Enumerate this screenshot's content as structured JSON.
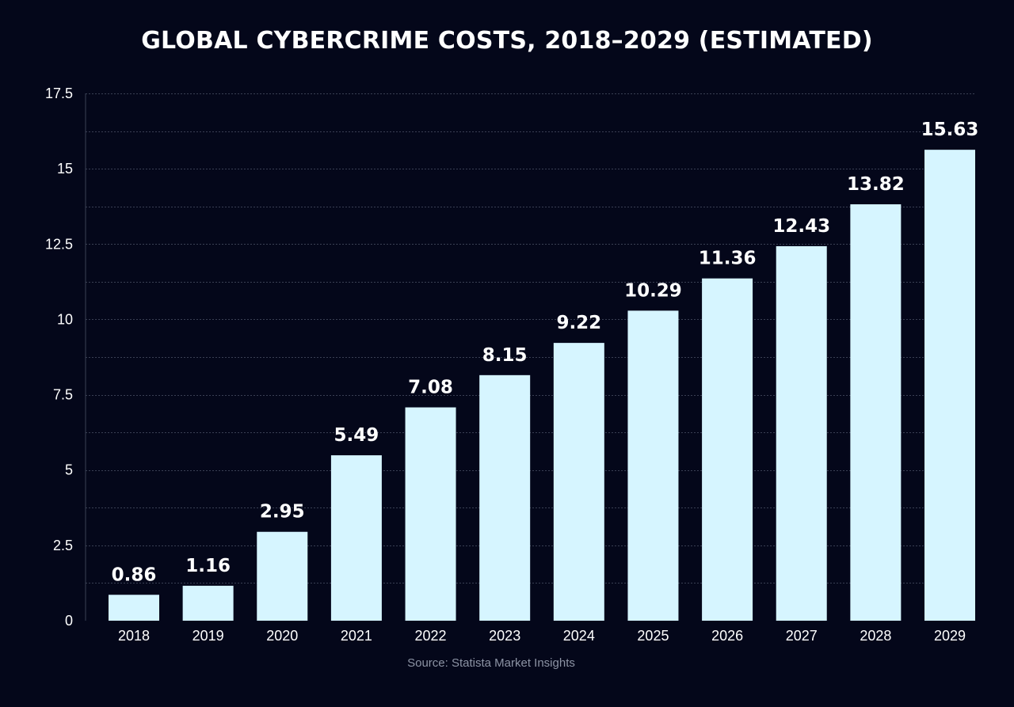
{
  "chart_data": {
    "type": "bar",
    "title": "GLOBAL CYBERCRIME COSTS, 2018–2029 (ESTIMATED)",
    "xlabel": "",
    "ylabel": "",
    "categories": [
      "2018",
      "2019",
      "2020",
      "2021",
      "2022",
      "2023",
      "2024",
      "2025",
      "2026",
      "2027",
      "2028",
      "2029"
    ],
    "values": [
      0.86,
      1.16,
      2.95,
      5.49,
      7.08,
      8.15,
      9.22,
      10.29,
      11.36,
      12.43,
      13.82,
      15.63
    ],
    "value_labels": [
      "0.86",
      "1.16",
      "2.95",
      "5.49",
      "7.08",
      "8.15",
      "9.22",
      "10.29",
      "11.36",
      "12.43",
      "13.82",
      "15.63"
    ],
    "ylim": [
      0,
      17.5
    ],
    "yticks": [
      0,
      2.5,
      5,
      7.5,
      10,
      12.5,
      15,
      17.5
    ],
    "ytick_labels": [
      "0",
      "2.5",
      "5",
      "7.5",
      "10",
      "12.5",
      "15",
      "17.5"
    ],
    "grid": true,
    "legend": "none",
    "source": "Source: Statista Market Insights"
  },
  "colors": {
    "background": "#04071a",
    "bar": "#d6f5ff",
    "gridline": "#3a4054",
    "text": "#ffffff",
    "source_text": "#8c93a4"
  }
}
